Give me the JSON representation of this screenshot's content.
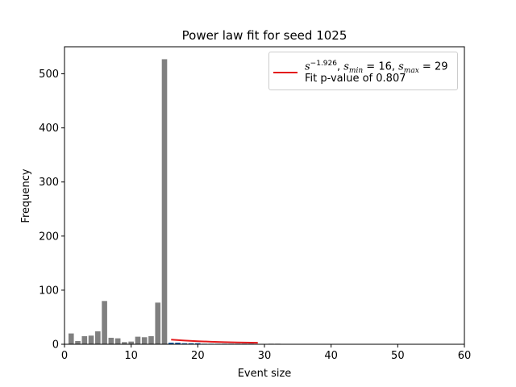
{
  "chart_data": {
    "type": "bar",
    "title": "Power law fit for seed 1025",
    "xlabel": "Event size",
    "ylabel": "Frequency",
    "xlim": [
      0,
      60
    ],
    "ylim": [
      0,
      550
    ],
    "xticks": [
      0,
      10,
      20,
      30,
      40,
      50,
      60
    ],
    "yticks": [
      0,
      100,
      200,
      300,
      400,
      500
    ],
    "grid": false,
    "legend_position": "top-right",
    "bar_color": "#808080",
    "highlight_color": "#1f5fa8",
    "fit_color": "#e31a1c",
    "bars": [
      {
        "x": 1,
        "y": 20
      },
      {
        "x": 2,
        "y": 6
      },
      {
        "x": 3,
        "y": 15
      },
      {
        "x": 4,
        "y": 16
      },
      {
        "x": 5,
        "y": 24
      },
      {
        "x": 6,
        "y": 80
      },
      {
        "x": 7,
        "y": 12
      },
      {
        "x": 8,
        "y": 11
      },
      {
        "x": 9,
        "y": 4
      },
      {
        "x": 10,
        "y": 5
      },
      {
        "x": 11,
        "y": 14
      },
      {
        "x": 12,
        "y": 13
      },
      {
        "x": 13,
        "y": 15
      },
      {
        "x": 14,
        "y": 77
      },
      {
        "x": 15,
        "y": 527
      },
      {
        "x": 16,
        "y": 3
      },
      {
        "x": 17,
        "y": 3
      },
      {
        "x": 18,
        "y": 2
      },
      {
        "x": 19,
        "y": 2
      },
      {
        "x": 20,
        "y": 2
      },
      {
        "x": 21,
        "y": 1
      },
      {
        "x": 22,
        "y": 1
      },
      {
        "x": 23,
        "y": 1
      },
      {
        "x": 24,
        "y": 1
      },
      {
        "x": 25,
        "y": 1
      },
      {
        "x": 26,
        "y": 1
      },
      {
        "x": 27,
        "y": 1
      },
      {
        "x": 28,
        "y": 1
      },
      {
        "x": 31,
        "y": 1
      },
      {
        "x": 32,
        "y": 1
      }
    ],
    "fit": {
      "label_exponent": "−1.926",
      "s_min": 16,
      "s_max": 29,
      "p_value_text": "Fit p-value of 0.807",
      "points": [
        {
          "x": 16,
          "y": 8.5
        },
        {
          "x": 18,
          "y": 6.9
        },
        {
          "x": 20,
          "y": 5.6
        },
        {
          "x": 22,
          "y": 4.7
        },
        {
          "x": 24,
          "y": 4.0
        },
        {
          "x": 26,
          "y": 3.4
        },
        {
          "x": 28,
          "y": 3.0
        },
        {
          "x": 29,
          "y": 2.8
        }
      ]
    }
  },
  "legend": {
    "fit_label_base": "s",
    "fit_label_exp": "−1.926",
    "fit_label_smin_sub": "min",
    "fit_label_smin_val": "16",
    "fit_label_smax_sub": "max",
    "fit_label_smax_val": "29",
    "p_value_text": "Fit p-value of 0.807"
  }
}
